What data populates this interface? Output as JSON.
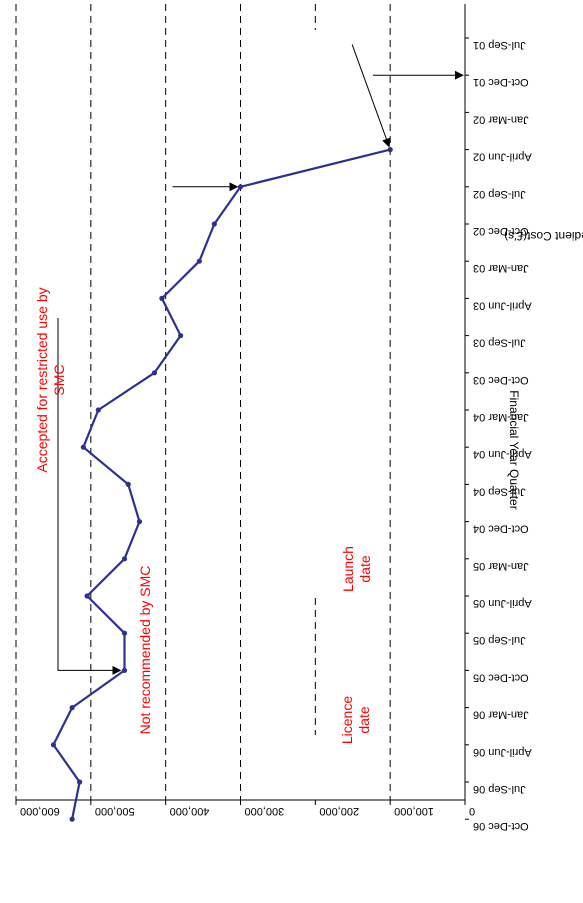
{
  "chart_data": {
    "type": "line",
    "title": "",
    "xlabel": "Financial Year Quarter",
    "ylabel": "Gross Ingredient Cost(£'s)",
    "categories": [
      "Jul-Sep 01",
      "Oct-Dec 01",
      "Jan-Mar 02",
      "April-Jun 02",
      "Jul-Sep 02",
      "Oct-Dec 02",
      "Jan-Mar 03",
      "April-Jun 03",
      "Jul-Sep 03",
      "Oct-Dec 03",
      "Jan-Mar 04",
      "April-Jun 04",
      "Jul-Sep 04",
      "Oct-Dec 04",
      "Jan-Mar 05",
      "April-Jun 05",
      "Jul-Sep 05",
      "Oct-Dec 05",
      "Jan-Mar 06",
      "April-Jun 06",
      "Jul-Sep 06",
      "Oct-Dec 06"
    ],
    "series": [
      {
        "values": [
          null,
          null,
          null,
          100000,
          300000,
          335000,
          355000,
          405000,
          380000,
          415000,
          490000,
          510000,
          450000,
          435000,
          455000,
          505000,
          455000,
          455000,
          525000,
          550000,
          515000,
          525000
        ]
      }
    ],
    "ylim": [
      0,
      600000
    ],
    "yticks": [
      0,
      100000,
      200000,
      300000,
      400000,
      500000,
      600000
    ],
    "ytick_labels": [
      "0",
      "100,000",
      "200,000",
      "300,000",
      "400,000",
      "500,000",
      "600,000"
    ],
    "grid": "horizontal-dashed",
    "line_color": "#2e3192",
    "annotation_color": "#ff0000",
    "annotations": [
      {
        "text": "Licence date",
        "category": "Oct-Dec 01",
        "value": 0
      },
      {
        "text": "Launch date",
        "category": "April-Jun 02",
        "value": 100000
      },
      {
        "text": "Not recommended by SMC",
        "category": "Jul-Sep 02",
        "value": 300000
      },
      {
        "text": "Accepted for restricted use by SMC",
        "category": "Oct-Dec 05",
        "value": 455000
      }
    ]
  }
}
